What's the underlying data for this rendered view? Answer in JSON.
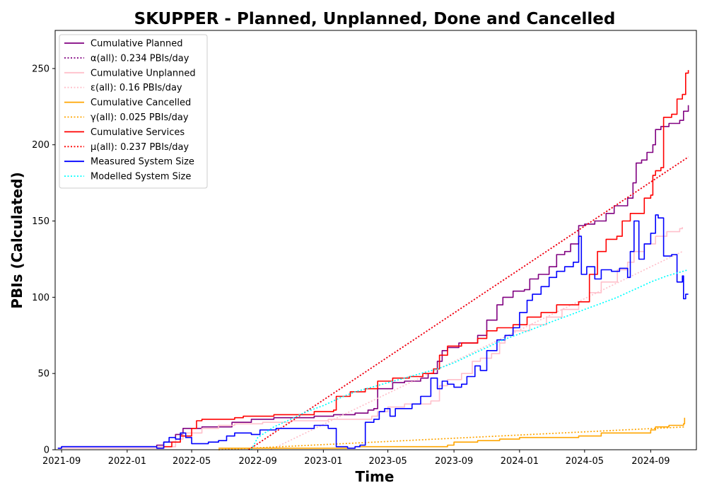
{
  "chart_data": {
    "type": "line",
    "title": "SKUPPER - Planned, Unplanned, Done  and Cancelled",
    "xlabel": "Time",
    "ylabel": "PBIs (Calculated)",
    "xlim": [
      "2021-08-20",
      "2024-11-25"
    ],
    "ylim": [
      0,
      275
    ],
    "x_ticks": [
      "2021-09",
      "2022-01",
      "2022-05",
      "2022-09",
      "2023-01",
      "2023-05",
      "2023-09",
      "2024-01",
      "2024-05",
      "2024-09"
    ],
    "y_ticks": [
      0,
      50,
      100,
      150,
      200,
      250
    ],
    "grid": false,
    "legend_position": "upper-left",
    "series": [
      {
        "name": "Cumulative Planned",
        "color": "#800080",
        "style": "solid",
        "points": [
          [
            "2021-08-25",
            1
          ],
          [
            "2021-09-01",
            2
          ],
          [
            "2022-02-25",
            3
          ],
          [
            "2022-03-10",
            5
          ],
          [
            "2022-04-01",
            10
          ],
          [
            "2022-04-15",
            14
          ],
          [
            "2022-05-20",
            15
          ],
          [
            "2022-07-15",
            18
          ],
          [
            "2022-08-20",
            20
          ],
          [
            "2022-10-01",
            21
          ],
          [
            "2022-12-15",
            22
          ],
          [
            "2023-01-20",
            23
          ],
          [
            "2023-03-01",
            24
          ],
          [
            "2023-03-25",
            26
          ],
          [
            "2023-04-05",
            27
          ],
          [
            "2023-04-12",
            40
          ],
          [
            "2023-05-10",
            44
          ],
          [
            "2023-06-01",
            45
          ],
          [
            "2023-07-01",
            47
          ],
          [
            "2023-07-15",
            50
          ],
          [
            "2023-08-01",
            58
          ],
          [
            "2023-08-10",
            65
          ],
          [
            "2023-08-20",
            67
          ],
          [
            "2023-09-10",
            70
          ],
          [
            "2023-10-15",
            75
          ],
          [
            "2023-11-01",
            85
          ],
          [
            "2023-11-20",
            95
          ],
          [
            "2023-12-01",
            100
          ],
          [
            "2023-12-20",
            104
          ],
          [
            "2024-01-10",
            105
          ],
          [
            "2024-01-20",
            112
          ],
          [
            "2024-02-05",
            115
          ],
          [
            "2024-02-25",
            120
          ],
          [
            "2024-03-10",
            128
          ],
          [
            "2024-03-25",
            130
          ],
          [
            "2024-04-05",
            135
          ],
          [
            "2024-04-20",
            147
          ],
          [
            "2024-05-01",
            148
          ],
          [
            "2024-05-20",
            150
          ],
          [
            "2024-06-10",
            155
          ],
          [
            "2024-06-25",
            160
          ],
          [
            "2024-07-20",
            165
          ],
          [
            "2024-07-30",
            175
          ],
          [
            "2024-08-05",
            188
          ],
          [
            "2024-08-15",
            190
          ],
          [
            "2024-08-25",
            195
          ],
          [
            "2024-09-05",
            200
          ],
          [
            "2024-09-10",
            210
          ],
          [
            "2024-09-20",
            212
          ],
          [
            "2024-10-05",
            214
          ],
          [
            "2024-10-25",
            216
          ],
          [
            "2024-11-01",
            222
          ],
          [
            "2024-11-10",
            226
          ]
        ]
      },
      {
        "name": "α(all): 0.234 PBIs/day",
        "color": "#800080",
        "style": "dotted",
        "points": [
          [
            "2022-08-15",
            0
          ],
          [
            "2024-11-10",
            192
          ]
        ]
      },
      {
        "name": "Cumulative Unplanned",
        "color": "#FFC0CB",
        "style": "solid",
        "points": [
          [
            "2021-08-25",
            1
          ],
          [
            "2021-09-01",
            1
          ],
          [
            "2022-02-28",
            2
          ],
          [
            "2022-04-01",
            7
          ],
          [
            "2022-04-15",
            11
          ],
          [
            "2022-05-20",
            14
          ],
          [
            "2022-06-20",
            16
          ],
          [
            "2022-07-20",
            17
          ],
          [
            "2022-09-10",
            18
          ],
          [
            "2022-11-01",
            19
          ],
          [
            "2023-01-10",
            20
          ],
          [
            "2023-03-01",
            20
          ],
          [
            "2023-04-01",
            22
          ],
          [
            "2023-04-12",
            25
          ],
          [
            "2023-05-01",
            28
          ],
          [
            "2023-06-01",
            30
          ],
          [
            "2023-07-20",
            32
          ],
          [
            "2023-08-05",
            42
          ],
          [
            "2023-08-20",
            46
          ],
          [
            "2023-09-15",
            50
          ],
          [
            "2023-10-05",
            58
          ],
          [
            "2023-10-20",
            60
          ],
          [
            "2023-11-10",
            63
          ],
          [
            "2023-11-25",
            70
          ],
          [
            "2023-12-05",
            75
          ],
          [
            "2023-12-20",
            78
          ],
          [
            "2024-01-20",
            82
          ],
          [
            "2024-02-20",
            87
          ],
          [
            "2024-03-20",
            92
          ],
          [
            "2024-04-20",
            97
          ],
          [
            "2024-05-10",
            103
          ],
          [
            "2024-06-01",
            110
          ],
          [
            "2024-07-01",
            118
          ],
          [
            "2024-07-20",
            123
          ],
          [
            "2024-08-01",
            130
          ],
          [
            "2024-08-20",
            135
          ],
          [
            "2024-09-10",
            140
          ],
          [
            "2024-10-01",
            143
          ],
          [
            "2024-10-25",
            145
          ],
          [
            "2024-10-30",
            146
          ]
        ]
      },
      {
        "name": "ε(all): 0.16 PBIs/day",
        "color": "#FFC0CB",
        "style": "dotted",
        "points": [
          [
            "2022-09-25",
            0
          ],
          [
            "2024-10-30",
            130
          ]
        ]
      },
      {
        "name": "Cumulative Cancelled",
        "color": "#FFA500",
        "style": "solid",
        "points": [
          [
            "2022-06-20",
            1
          ],
          [
            "2022-11-01",
            1
          ],
          [
            "2023-03-01",
            2
          ],
          [
            "2023-08-20",
            3
          ],
          [
            "2023-09-01",
            5
          ],
          [
            "2023-10-15",
            6
          ],
          [
            "2023-11-25",
            7
          ],
          [
            "2024-01-01",
            8
          ],
          [
            "2024-04-20",
            9
          ],
          [
            "2024-06-01",
            11
          ],
          [
            "2024-09-01",
            13
          ],
          [
            "2024-09-10",
            15
          ],
          [
            "2024-10-05",
            16
          ],
          [
            "2024-11-01",
            17
          ],
          [
            "2024-11-03",
            21
          ]
        ]
      },
      {
        "name": "γ(all): 0.025 PBIs/day",
        "color": "#FFA500",
        "style": "dotted",
        "points": [
          [
            "2022-06-20",
            0
          ],
          [
            "2024-11-05",
            15
          ]
        ]
      },
      {
        "name": "Cumulative Services",
        "color": "#FF0000",
        "style": "solid",
        "points": [
          [
            "2022-02-25",
            1
          ],
          [
            "2022-03-10",
            2
          ],
          [
            "2022-03-25",
            5
          ],
          [
            "2022-04-10",
            9
          ],
          [
            "2022-05-01",
            14
          ],
          [
            "2022-05-10",
            19
          ],
          [
            "2022-05-20",
            20
          ],
          [
            "2022-07-20",
            21
          ],
          [
            "2022-08-05",
            22
          ],
          [
            "2022-10-01",
            23
          ],
          [
            "2022-12-15",
            25
          ],
          [
            "2023-01-20",
            26
          ],
          [
            "2023-01-25",
            35
          ],
          [
            "2023-02-20",
            38
          ],
          [
            "2023-03-20",
            40
          ],
          [
            "2023-04-12",
            45
          ],
          [
            "2023-05-10",
            47
          ],
          [
            "2023-06-10",
            48
          ],
          [
            "2023-07-05",
            50
          ],
          [
            "2023-07-25",
            53
          ],
          [
            "2023-08-05",
            62
          ],
          [
            "2023-08-20",
            68
          ],
          [
            "2023-09-15",
            70
          ],
          [
            "2023-10-15",
            73
          ],
          [
            "2023-11-01",
            78
          ],
          [
            "2023-11-20",
            80
          ],
          [
            "2023-12-20",
            82
          ],
          [
            "2024-01-15",
            87
          ],
          [
            "2024-02-10",
            90
          ],
          [
            "2024-03-10",
            95
          ],
          [
            "2024-04-20",
            97
          ],
          [
            "2024-05-10",
            115
          ],
          [
            "2024-05-25",
            130
          ],
          [
            "2024-06-10",
            138
          ],
          [
            "2024-06-30",
            140
          ],
          [
            "2024-07-10",
            150
          ],
          [
            "2024-07-25",
            155
          ],
          [
            "2024-08-20",
            165
          ],
          [
            "2024-09-01",
            167
          ],
          [
            "2024-09-05",
            180
          ],
          [
            "2024-09-10",
            183
          ],
          [
            "2024-09-20",
            185
          ],
          [
            "2024-09-25",
            218
          ],
          [
            "2024-10-10",
            220
          ],
          [
            "2024-10-20",
            230
          ],
          [
            "2024-10-30",
            233
          ],
          [
            "2024-11-05",
            247
          ],
          [
            "2024-11-10",
            249
          ]
        ]
      },
      {
        "name": "μ(all): 0.237 PBIs/day",
        "color": "#FF0000",
        "style": "dotted",
        "points": [
          [
            "2022-08-15",
            0
          ],
          [
            "2024-11-10",
            192
          ]
        ]
      },
      {
        "name": "Measured System Size",
        "color": "#0000FF",
        "style": "solid",
        "points": [
          [
            "2021-08-25",
            1
          ],
          [
            "2021-09-01",
            2
          ],
          [
            "2022-02-25",
            1
          ],
          [
            "2022-03-10",
            5
          ],
          [
            "2022-03-20",
            8
          ],
          [
            "2022-04-01",
            7
          ],
          [
            "2022-04-10",
            11
          ],
          [
            "2022-04-20",
            8
          ],
          [
            "2022-05-01",
            4
          ],
          [
            "2022-06-01",
            5
          ],
          [
            "2022-06-20",
            6
          ],
          [
            "2022-07-05",
            9
          ],
          [
            "2022-07-20",
            11
          ],
          [
            "2022-08-20",
            10
          ],
          [
            "2022-09-05",
            13
          ],
          [
            "2022-10-05",
            14
          ],
          [
            "2022-12-15",
            16
          ],
          [
            "2023-01-10",
            14
          ],
          [
            "2023-01-20",
            14
          ],
          [
            "2023-01-25",
            2
          ],
          [
            "2023-02-15",
            1
          ],
          [
            "2023-03-01",
            2
          ],
          [
            "2023-03-10",
            3
          ],
          [
            "2023-03-20",
            18
          ],
          [
            "2023-04-05",
            20
          ],
          [
            "2023-04-15",
            25
          ],
          [
            "2023-04-25",
            27
          ],
          [
            "2023-05-05",
            22
          ],
          [
            "2023-05-15",
            27
          ],
          [
            "2023-06-01",
            27
          ],
          [
            "2023-06-15",
            30
          ],
          [
            "2023-07-01",
            35
          ],
          [
            "2023-07-20",
            47
          ],
          [
            "2023-08-01",
            40
          ],
          [
            "2023-08-10",
            45
          ],
          [
            "2023-08-20",
            43
          ],
          [
            "2023-09-01",
            41
          ],
          [
            "2023-09-15",
            43
          ],
          [
            "2023-09-25",
            48
          ],
          [
            "2023-10-10",
            55
          ],
          [
            "2023-10-20",
            52
          ],
          [
            "2023-11-01",
            65
          ],
          [
            "2023-11-20",
            72
          ],
          [
            "2023-12-05",
            75
          ],
          [
            "2023-12-20",
            80
          ],
          [
            "2024-01-01",
            90
          ],
          [
            "2024-01-15",
            98
          ],
          [
            "2024-01-25",
            102
          ],
          [
            "2024-02-10",
            107
          ],
          [
            "2024-02-25",
            113
          ],
          [
            "2024-03-10",
            117
          ],
          [
            "2024-03-25",
            120
          ],
          [
            "2024-04-10",
            123
          ],
          [
            "2024-04-20",
            140
          ],
          [
            "2024-04-25",
            115
          ],
          [
            "2024-05-05",
            120
          ],
          [
            "2024-05-20",
            112
          ],
          [
            "2024-06-01",
            118
          ],
          [
            "2024-06-20",
            117
          ],
          [
            "2024-07-05",
            119
          ],
          [
            "2024-07-20",
            113
          ],
          [
            "2024-07-25",
            130
          ],
          [
            "2024-08-01",
            150
          ],
          [
            "2024-08-10",
            125
          ],
          [
            "2024-08-20",
            135
          ],
          [
            "2024-09-01",
            142
          ],
          [
            "2024-09-10",
            154
          ],
          [
            "2024-09-15",
            152
          ],
          [
            "2024-09-25",
            127
          ],
          [
            "2024-10-10",
            128
          ],
          [
            "2024-10-20",
            110
          ],
          [
            "2024-10-30",
            114
          ],
          [
            "2024-11-01",
            99
          ],
          [
            "2024-11-05",
            102
          ],
          [
            "2024-11-10",
            102
          ]
        ]
      },
      {
        "name": "Modelled System Size",
        "color": "#00FFFF",
        "style": "dotted",
        "points": [
          [
            "2022-08-20",
            0
          ],
          [
            "2022-09-01",
            8
          ],
          [
            "2022-10-01",
            15
          ],
          [
            "2022-11-01",
            20
          ],
          [
            "2022-12-01",
            25
          ],
          [
            "2023-01-01",
            29
          ],
          [
            "2023-02-01",
            34
          ],
          [
            "2023-03-01",
            38
          ],
          [
            "2023-04-01",
            41
          ],
          [
            "2023-05-01",
            44
          ],
          [
            "2023-06-01",
            47
          ],
          [
            "2023-07-01",
            50
          ],
          [
            "2023-08-01",
            53
          ],
          [
            "2023-09-01",
            57
          ],
          [
            "2023-10-01",
            62
          ],
          [
            "2023-11-01",
            67
          ],
          [
            "2023-12-01",
            72
          ],
          [
            "2024-01-01",
            76
          ],
          [
            "2024-02-01",
            80
          ],
          [
            "2024-03-01",
            84
          ],
          [
            "2024-04-01",
            88
          ],
          [
            "2024-05-01",
            92
          ],
          [
            "2024-06-01",
            96
          ],
          [
            "2024-07-01",
            100
          ],
          [
            "2024-08-01",
            105
          ],
          [
            "2024-09-01",
            110
          ],
          [
            "2024-10-01",
            114
          ],
          [
            "2024-11-10",
            118
          ]
        ]
      }
    ]
  }
}
